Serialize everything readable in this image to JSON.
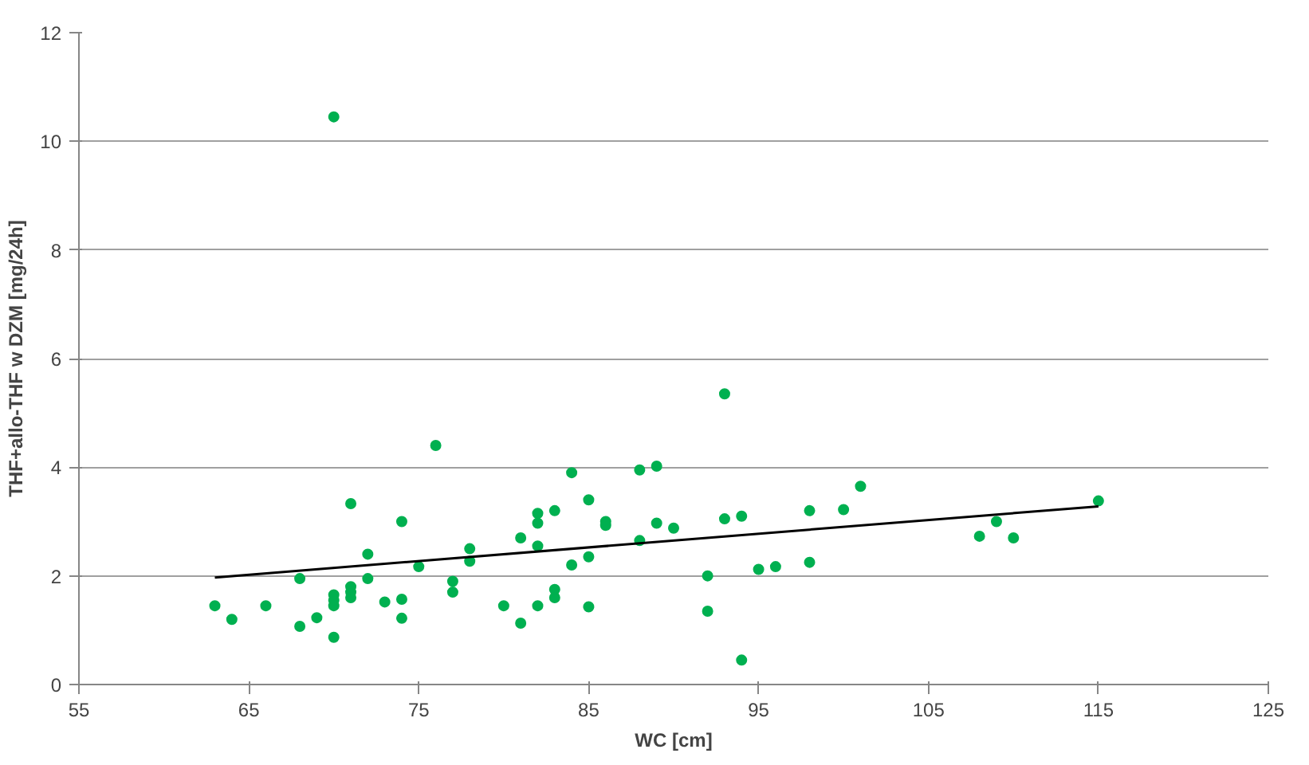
{
  "chart_data": {
    "type": "scatter",
    "xlabel": "WC [cm]",
    "ylabel": "THF+allo-THF w DZM [mg/24h]",
    "xlim": [
      55,
      125
    ],
    "xticks": [
      55,
      65,
      75,
      85,
      95,
      105,
      115,
      125
    ],
    "ylim": [
      0,
      12
    ],
    "yticks": [
      0,
      2,
      4,
      6,
      8,
      10,
      12
    ],
    "grid": "y",
    "series": [
      {
        "marker": "circle",
        "color": "#00b050",
        "x": [
          63,
          64,
          66,
          68,
          68,
          69,
          70,
          70,
          70,
          70,
          70,
          71,
          71,
          71,
          71,
          72,
          72,
          73,
          74,
          74,
          74,
          75,
          76,
          77,
          77,
          78,
          78,
          80,
          81,
          81,
          82,
          82,
          82,
          82,
          83,
          83,
          83,
          84,
          84,
          85,
          85,
          85,
          86,
          86,
          88,
          88,
          89,
          89,
          90,
          92,
          92,
          93,
          93,
          94,
          94,
          95,
          96,
          98,
          98,
          100,
          101,
          108,
          109,
          110,
          115
        ],
        "values": [
          1.45,
          1.2,
          1.45,
          1.07,
          1.95,
          1.23,
          10.45,
          1.65,
          1.55,
          1.45,
          0.87,
          3.33,
          1.8,
          1.7,
          1.6,
          2.4,
          1.95,
          1.52,
          3.0,
          1.57,
          1.22,
          2.17,
          4.4,
          1.9,
          1.7,
          2.5,
          2.27,
          1.45,
          2.7,
          1.13,
          3.15,
          2.97,
          2.55,
          1.45,
          3.2,
          1.75,
          1.6,
          3.9,
          2.2,
          3.4,
          2.35,
          1.43,
          3.0,
          2.93,
          3.95,
          2.65,
          4.02,
          2.97,
          2.88,
          2.0,
          1.35,
          5.35,
          3.05,
          3.1,
          0.45,
          2.12,
          2.17,
          3.2,
          2.25,
          3.22,
          3.65,
          2.73,
          3.0,
          2.7,
          3.38
        ]
      },
      {
        "type": "line",
        "marker": "none",
        "color": "#000000",
        "x": [
          63,
          115
        ],
        "values": [
          1.97,
          3.28
        ]
      }
    ]
  }
}
